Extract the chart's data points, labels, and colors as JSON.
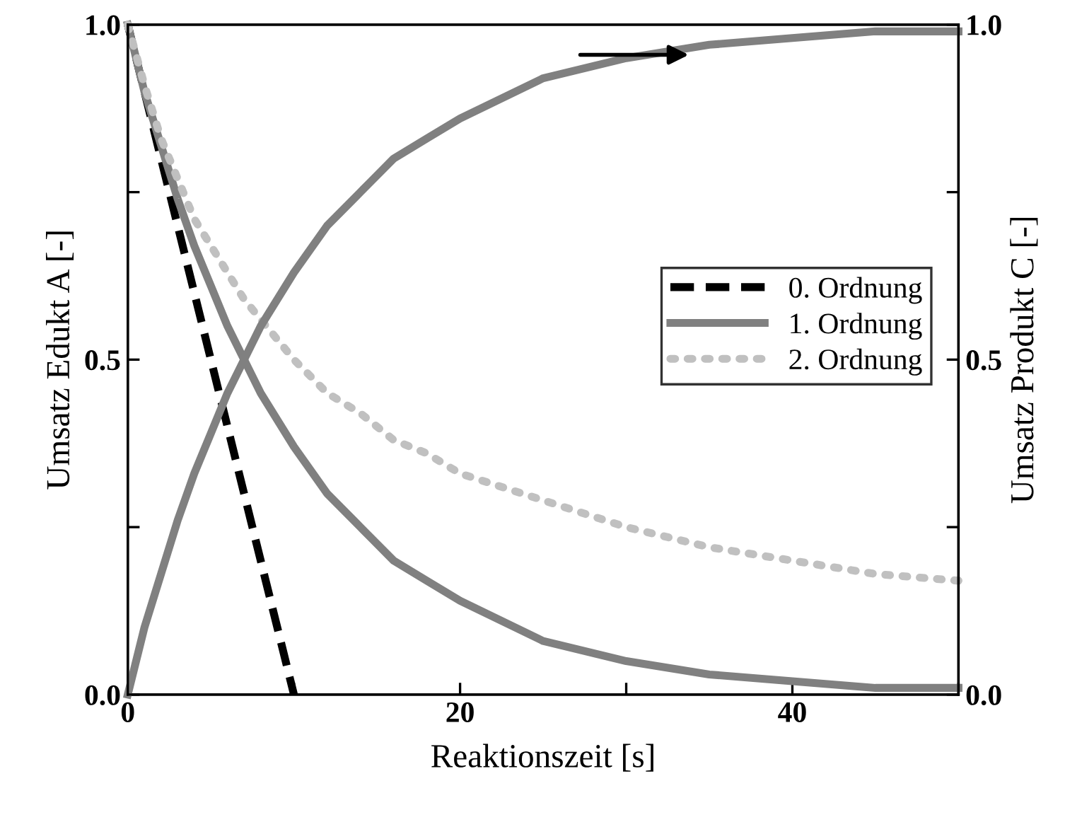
{
  "chart_data": {
    "type": "line",
    "xlabel": "Reaktionszeit [s]",
    "ylabel": "Umsatz Edukt A [-]",
    "y2label": "Umsatz Produkt C [-]",
    "xlim": [
      0,
      50
    ],
    "xticks": [
      0,
      {
        "value": 10,
        "label": null
      },
      20,
      {
        "value": 30,
        "label": null
      },
      40,
      {
        "value": 50,
        "label": null
      }
    ],
    "ylim": [
      0,
      1
    ],
    "yticks": [
      {
        "value": 0,
        "label": "0.0"
      },
      {
        "value": 0.25,
        "label": null
      },
      {
        "value": 0.5,
        "label": "0.5"
      },
      {
        "value": 0.75,
        "label": null
      },
      {
        "value": 1,
        "label": "1.0"
      }
    ],
    "y2lim": [
      0,
      1
    ],
    "y2ticks": [
      {
        "value": 0,
        "label": "0.0"
      },
      {
        "value": 0.25,
        "label": null
      },
      {
        "value": 0.5,
        "label": "0.5"
      },
      {
        "value": 0.75,
        "label": null
      },
      {
        "value": 1,
        "label": "1.0"
      }
    ],
    "legend": "right",
    "grid": false,
    "series": [
      {
        "name": "0. Ordnung",
        "color": "#000000",
        "line_style": "dashed",
        "x": [
          0,
          10
        ],
        "values": [
          1.0,
          0.0
        ]
      },
      {
        "name": "1. Ordnung",
        "color": "#808080",
        "line_style": "solid",
        "x": [
          0,
          1,
          2,
          3,
          4,
          5,
          6,
          7,
          8,
          10,
          12,
          14,
          16,
          18,
          20,
          25,
          30,
          35,
          40,
          45,
          50
        ],
        "values": [
          1.0,
          0.9,
          0.82,
          0.74,
          0.67,
          0.61,
          0.55,
          0.5,
          0.45,
          0.37,
          0.3,
          0.25,
          0.2,
          0.17,
          0.14,
          0.08,
          0.05,
          0.03,
          0.02,
          0.01,
          0.01
        ]
      },
      {
        "color": "#808080",
        "line_style": "solid",
        "axis": "y2",
        "x": [
          0,
          1,
          2,
          3,
          4,
          5,
          6,
          7,
          8,
          10,
          12,
          14,
          16,
          18,
          20,
          25,
          30,
          35,
          40,
          45,
          50
        ],
        "values": [
          0.0,
          0.1,
          0.18,
          0.26,
          0.33,
          0.39,
          0.45,
          0.5,
          0.55,
          0.63,
          0.7,
          0.75,
          0.8,
          0.83,
          0.86,
          0.92,
          0.95,
          0.97,
          0.98,
          0.99,
          0.99
        ]
      },
      {
        "name": "2. Ordnung",
        "color": "#c0c0c0",
        "line_style": "dotted",
        "x": [
          0,
          1,
          2,
          3,
          4,
          5,
          6,
          7,
          8,
          10,
          12,
          14,
          16,
          18,
          20,
          25,
          30,
          35,
          40,
          45,
          50
        ],
        "values": [
          1.0,
          0.91,
          0.83,
          0.77,
          0.71,
          0.67,
          0.63,
          0.59,
          0.56,
          0.5,
          0.45,
          0.42,
          0.38,
          0.36,
          0.33,
          0.29,
          0.25,
          0.22,
          0.2,
          0.18,
          0.17
        ]
      }
    ]
  }
}
